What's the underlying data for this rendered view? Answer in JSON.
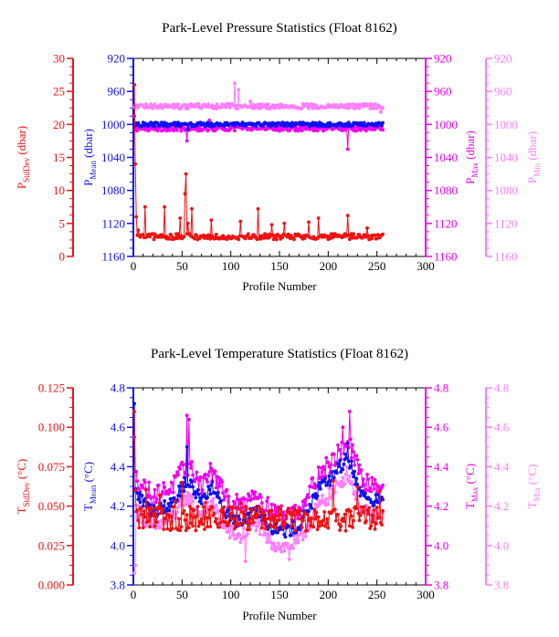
{
  "colors": {
    "stddev": "#ee1111",
    "mean": "#1010ee",
    "max": "#ee00ee",
    "min": "#ff7dff",
    "frame": "#000000"
  },
  "chart_data": [
    {
      "type": "scatter",
      "title": "Park-Level Pressure Statistics (Float 8162)",
      "xlabel": "Profile Number",
      "xlim": [
        0,
        300
      ],
      "xticks": [
        "0",
        "50",
        "100",
        "150",
        "200",
        "250",
        "300"
      ],
      "axes": {
        "stddev": {
          "label_main": "P",
          "label_sub": "StdDev",
          "label_unit": " (dbar)",
          "range": [
            0,
            30
          ],
          "ticks": [
            "0",
            "5",
            "10",
            "15",
            "20",
            "25",
            "30"
          ]
        },
        "mean": {
          "label_main": "P",
          "label_sub": "Mean",
          "label_unit": " (dbar)",
          "range": [
            1160,
            920
          ],
          "ticks": [
            "1160",
            "1120",
            "1080",
            "1040",
            "1000",
            "960",
            "920"
          ]
        },
        "max": {
          "label_main": "P",
          "label_sub": "Max",
          "label_unit": " (dbar)",
          "range": [
            1160,
            920
          ],
          "ticks": [
            "1160",
            "1120",
            "1080",
            "1040",
            "1000",
            "960",
            "920"
          ]
        },
        "min": {
          "label_main": "P",
          "label_sub": "Min",
          "label_unit": " (dbar)",
          "range": [
            1160,
            920
          ],
          "ticks": [
            "1160",
            "1120",
            "1080",
            "1040",
            "1000",
            "960",
            "920"
          ]
        }
      },
      "n_profiles": 256,
      "series": [
        {
          "key": "min",
          "base": 978,
          "noise": 3,
          "events": [
            [
              104,
              950
            ],
            [
              108,
              958
            ],
            [
              120,
              972
            ],
            [
              200,
              976
            ],
            [
              254,
              985
            ]
          ]
        },
        {
          "key": "max",
          "base": 1005,
          "noise": 3,
          "events": [
            [
              55,
              1020
            ],
            [
              220,
              1030
            ],
            [
              1,
              990
            ],
            [
              78,
              995
            ]
          ]
        },
        {
          "key": "mean",
          "base": 1000,
          "noise": 2.5,
          "events": [
            [
              56,
              1006
            ]
          ]
        },
        {
          "key": "stddev",
          "base": 3.0,
          "noise": 0.45,
          "events": [
            [
              1,
              26
            ],
            [
              2,
              14
            ],
            [
              3,
              6
            ],
            [
              5,
              4
            ],
            [
              12,
              7.5
            ],
            [
              32,
              7.5
            ],
            [
              48,
              5.8
            ],
            [
              53,
              9.5
            ],
            [
              54,
              12.5
            ],
            [
              56,
              5
            ],
            [
              60,
              7.2
            ],
            [
              80,
              5.5
            ],
            [
              110,
              5.3
            ],
            [
              128,
              7.2
            ],
            [
              142,
              4.8
            ],
            [
              155,
              5
            ],
            [
              180,
              5.2
            ],
            [
              190,
              5.8
            ],
            [
              220,
              6.2
            ],
            [
              240,
              4.3
            ]
          ]
        }
      ]
    },
    {
      "type": "scatter",
      "title": "Park-Level Temperature Statistics (Float 8162)",
      "xlabel": "Profile Number",
      "xlim": [
        0,
        300
      ],
      "xticks": [
        "0",
        "50",
        "100",
        "150",
        "200",
        "250",
        "300"
      ],
      "axes": {
        "stddev": {
          "label_main": "T",
          "label_sub": "StdDev",
          "label_unit": " (°C)",
          "range": [
            0,
            0.125
          ],
          "ticks": [
            "0.000",
            "0.025",
            "0.050",
            "0.075",
            "0.100",
            "0.125"
          ]
        },
        "mean": {
          "label_main": "T",
          "label_sub": "Mean",
          "label_unit": " (°C)",
          "range": [
            3.8,
            4.8
          ],
          "ticks": [
            "3.8",
            "4.0",
            "4.2",
            "4.4",
            "4.6",
            "4.8"
          ]
        },
        "max": {
          "label_main": "T",
          "label_sub": "Max",
          "label_unit": " (°C)",
          "range": [
            3.8,
            4.8
          ],
          "ticks": [
            "3.8",
            "4.0",
            "4.2",
            "4.4",
            "4.6",
            "4.8"
          ]
        },
        "min": {
          "label_main": "T",
          "label_sub": "Min",
          "label_unit": " (°C)",
          "range": [
            3.8,
            4.8
          ],
          "ticks": [
            "3.8",
            "4.0",
            "4.2",
            "4.4",
            "4.6",
            "4.8"
          ]
        }
      },
      "n_profiles": 256,
      "trend_knots": [
        [
          0,
          4.28
        ],
        [
          20,
          4.17
        ],
        [
          40,
          4.22
        ],
        [
          55,
          4.33
        ],
        [
          70,
          4.23
        ],
        [
          80,
          4.3
        ],
        [
          95,
          4.16
        ],
        [
          110,
          4.12
        ],
        [
          125,
          4.2
        ],
        [
          140,
          4.1
        ],
        [
          155,
          4.07
        ],
        [
          170,
          4.1
        ],
        [
          190,
          4.28
        ],
        [
          205,
          4.35
        ],
        [
          220,
          4.45
        ],
        [
          235,
          4.25
        ],
        [
          255,
          4.22
        ]
      ],
      "series": [
        {
          "key": "min",
          "offset": -0.08,
          "noise": 0.04,
          "events": [
            [
              1,
              3.86
            ],
            [
              2,
              3.9
            ],
            [
              115,
              3.92
            ],
            [
              160,
              3.93
            ]
          ]
        },
        {
          "key": "max",
          "offset": 0.08,
          "noise": 0.05,
          "events": [
            [
              1,
              4.55
            ],
            [
              55,
              4.66
            ],
            [
              57,
              4.64
            ],
            [
              222,
              4.68
            ],
            [
              215,
              4.6
            ]
          ]
        },
        {
          "key": "mean",
          "offset": 0.0,
          "noise": 0.035,
          "events": [
            [
              1,
              4.72
            ],
            [
              55,
              4.5
            ],
            [
              220,
              4.52
            ]
          ]
        },
        {
          "key": "stddev",
          "std_base": 0.042,
          "noise": 0.008,
          "events": [
            [
              1,
              0.11
            ],
            [
              2,
              0.06
            ],
            [
              50,
              0.065
            ],
            [
              205,
              0.066
            ],
            [
              230,
              0.062
            ],
            [
              110,
              0.052
            ]
          ]
        }
      ]
    }
  ]
}
